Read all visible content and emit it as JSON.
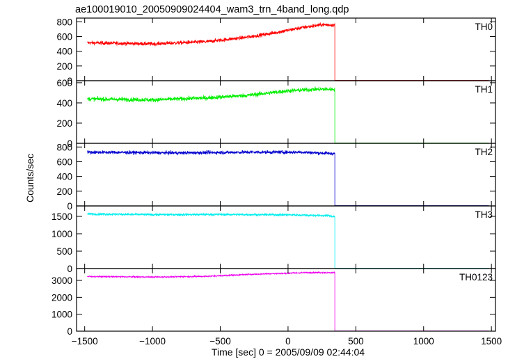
{
  "chart_data": {
    "type": "line",
    "title": "ae100019010_20050909024404_wam3_trn_4band_long.qdp",
    "xlabel": "Time [sec] 0 = 2005/09/09 02:44:04",
    "ylabel": "Counts/sec",
    "xlim": [
      -1560,
      1530
    ],
    "x_ticks": [
      -1500,
      -1000,
      -500,
      0,
      500,
      1000,
      1500
    ],
    "x_tick_labels": [
      "−1500",
      "−1000",
      "−500",
      "0",
      "500",
      "1000",
      "1500"
    ],
    "grid": false,
    "drop_time": 345,
    "x_start": -1480,
    "x_end": 1480,
    "series": [
      {
        "name": "TH0",
        "color": "#ff0000",
        "ylim": [
          0,
          850
        ],
        "y_ticks": [
          0,
          200,
          400,
          600,
          800
        ],
        "keypoints": [
          [
            -1480,
            515
          ],
          [
            -1000,
            500
          ],
          [
            -600,
            530
          ],
          [
            -300,
            590
          ],
          [
            -100,
            650
          ],
          [
            100,
            720
          ],
          [
            250,
            760
          ],
          [
            345,
            755
          ]
        ],
        "noise": 22,
        "after": 5
      },
      {
        "name": "TH1",
        "color": "#00ee00",
        "ylim": [
          0,
          620
        ],
        "y_ticks": [
          0,
          200,
          400,
          600
        ],
        "keypoints": [
          [
            -1480,
            440
          ],
          [
            -1000,
            430
          ],
          [
            -600,
            450
          ],
          [
            -300,
            475
          ],
          [
            0,
            520
          ],
          [
            200,
            535
          ],
          [
            345,
            535
          ]
        ],
        "noise": 18,
        "after": 4
      },
      {
        "name": "TH2",
        "color": "#0000cc",
        "ylim": [
          0,
          850
        ],
        "y_ticks": [
          0,
          200,
          400,
          600,
          800
        ],
        "keypoints": [
          [
            -1480,
            730
          ],
          [
            -800,
            720
          ],
          [
            -300,
            730
          ],
          [
            100,
            730
          ],
          [
            345,
            710
          ]
        ],
        "noise": 20,
        "after": 5
      },
      {
        "name": "TH3",
        "color": "#00eeee",
        "ylim": [
          0,
          1800
        ],
        "y_ticks": [
          0,
          500,
          1000,
          1500
        ],
        "keypoints": [
          [
            -1480,
            1570
          ],
          [
            -1000,
            1550
          ],
          [
            -500,
            1555
          ],
          [
            0,
            1545
          ],
          [
            300,
            1520
          ],
          [
            345,
            1490
          ]
        ],
        "noise": 30,
        "after": 10
      },
      {
        "name": "TH0123",
        "color": "#ee00ee",
        "ylim": [
          0,
          3700
        ],
        "y_ticks": [
          0,
          1000,
          2000,
          3000
        ],
        "keypoints": [
          [
            -1480,
            3230
          ],
          [
            -1000,
            3200
          ],
          [
            -600,
            3240
          ],
          [
            -300,
            3350
          ],
          [
            0,
            3430
          ],
          [
            200,
            3470
          ],
          [
            345,
            3450
          ]
        ],
        "noise": 35,
        "after": 12
      }
    ]
  }
}
